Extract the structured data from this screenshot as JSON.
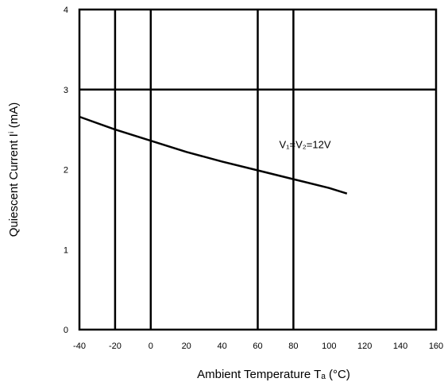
{
  "chart_data": {
    "type": "line",
    "title": "",
    "xlabel": "Ambient Temperature Tₐ (°C)",
    "ylabel": "Quiescent Current Iⁱ (mA)",
    "xlim": [
      -40,
      160
    ],
    "ylim": [
      0,
      4
    ],
    "x_ticks": [
      -40,
      -20,
      0,
      20,
      40,
      60,
      80,
      100,
      120,
      140,
      160
    ],
    "x_tick_labels": [
      "-40",
      "-20",
      "0",
      "20",
      "40",
      "60",
      "80",
      "100",
      "120",
      "140",
      "160"
    ],
    "y_ticks": [
      0,
      1,
      2,
      3,
      4
    ],
    "y_tick_labels": [
      "0",
      "1",
      "2",
      "3",
      "4"
    ],
    "grid_x": [
      -20,
      0,
      60,
      80
    ],
    "grid_y": [
      3
    ],
    "series": [
      {
        "x": [
          -40,
          -20,
          0,
          20,
          40,
          60,
          80,
          100,
          110
        ],
        "y": [
          2.66,
          2.5,
          2.36,
          2.22,
          2.1,
          1.99,
          1.88,
          1.77,
          1.7
        ]
      }
    ],
    "annotation": {
      "text": "V₁=V₂=12V",
      "x": 72,
      "y": 2.27
    }
  }
}
